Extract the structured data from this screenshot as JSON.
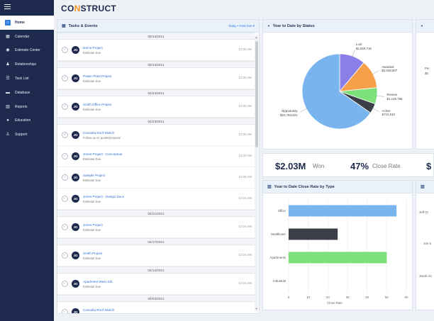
{
  "brand": {
    "logo_pre": "CO",
    "logo_hl": "N",
    "logo_post": "STRUCT"
  },
  "sidebar": {
    "items": [
      {
        "label": "Home",
        "icon": "home-icon",
        "glyph": "⌂",
        "active": true
      },
      {
        "label": "Calendar",
        "icon": "calendar-icon",
        "glyph": "▦"
      },
      {
        "label": "Estimate Center",
        "icon": "estimate-icon",
        "glyph": "◉"
      },
      {
        "label": "Relationships",
        "icon": "people-icon",
        "glyph": "♟"
      },
      {
        "label": "Task List",
        "icon": "tasklist-icon",
        "glyph": "☰"
      },
      {
        "label": "Database",
        "icon": "database-icon",
        "glyph": "▬"
      },
      {
        "label": "Reports",
        "icon": "reports-icon",
        "glyph": "▥"
      },
      {
        "label": "Education",
        "icon": "education-icon",
        "glyph": "●"
      },
      {
        "label": "Support",
        "icon": "support-icon",
        "glyph": "♙"
      }
    ]
  },
  "tasks": {
    "title": "Tasks & Events",
    "period": "Today • Past Due ▾",
    "rows": [
      {
        "type": "date",
        "label": "05/14/2021"
      },
      {
        "type": "task",
        "title": "Dal-Ie Project",
        "sub": "Estimate Due",
        "time": "12:00 AM",
        "initials": "JG"
      },
      {
        "type": "date",
        "label": "05/13/2021"
      },
      {
        "type": "task",
        "title": "Power Plant Project",
        "sub": "Estimate Due",
        "time": "12:00 AM",
        "initials": "JG"
      },
      {
        "type": "date",
        "label": "04/24/2021"
      },
      {
        "type": "task",
        "title": "Smith Office Project",
        "sub": "Estimate Due",
        "time": "12:00 AM",
        "initials": "JG"
      },
      {
        "type": "date",
        "label": "04/23/2021"
      },
      {
        "type": "task",
        "title": "Consulta Roof Sketch",
        "sub": "Follow up on quote/proposal",
        "time": "12:00 AM",
        "initials": "JG",
        "list": true
      },
      {
        "type": "task",
        "title": "Jones Project - Conceptual",
        "sub": "Estimate Due",
        "time": "12:00 AM",
        "initials": "JG"
      },
      {
        "type": "task",
        "title": "Sample Project",
        "sub": "Estimate Due",
        "time": "12:00 AM",
        "initials": "JG"
      },
      {
        "type": "task",
        "title": "Jones Project - Design Docs",
        "sub": "Estimate Due",
        "time": "12:00 AM",
        "initials": "JG"
      },
      {
        "type": "date",
        "label": "04/21/2021"
      },
      {
        "type": "task",
        "title": "Jones Project",
        "sub": "Estimate Due",
        "time": "12:00 AM",
        "initials": "JG"
      },
      {
        "type": "date",
        "label": "04/17/2021"
      },
      {
        "type": "task",
        "title": "Smith Project",
        "sub": "Estimate Due",
        "time": "12:00 AM",
        "initials": "JG"
      },
      {
        "type": "date",
        "label": "04/14/2021"
      },
      {
        "type": "task",
        "title": "Apartment West Job",
        "sub": "Estimate Due",
        "time": "12:00 AM",
        "initials": "JG"
      },
      {
        "type": "date",
        "label": "04/03/2021"
      },
      {
        "type": "task",
        "title": "Consulta Roof Sketch",
        "sub": "",
        "time": "",
        "initials": "JG"
      }
    ]
  },
  "status_chart": {
    "title": "Year to Date by Status",
    "slices": [
      {
        "name": "Lost",
        "value_label": "$1,829,716",
        "value": 1829716,
        "color": "#8a7fe8"
      },
      {
        "name": "Awarded",
        "value_label": "$2,028,007",
        "value": 2028007,
        "color": "#f7a04b"
      },
      {
        "name": "Review",
        "value_label": "$1,149,756",
        "value": 1149756,
        "color": "#7de07a"
      },
      {
        "name": "Active",
        "value_label": "$710,910",
        "value": 710910,
        "color": "#3b3f47"
      },
      {
        "name": "Opportunity",
        "value_label": "$10,764,821",
        "value": 10764821,
        "color": "#7ab4ee"
      }
    ]
  },
  "kpis": {
    "won_value": "$2.03M",
    "won_label": "Won",
    "close_value": "47%",
    "close_label": "Close Rate",
    "cut_value": "$"
  },
  "chart_data": {
    "type": "bar",
    "title": "Year to Date Close Rate by Type",
    "categories": [
      "Office",
      "Healthcare",
      "Apartments",
      "Industrial"
    ],
    "values": [
      55,
      25,
      50,
      0
    ],
    "colors": [
      "#7ab4ee",
      "#3b3f47",
      "#7de07a",
      "#cccccc"
    ],
    "xlim": [
      0,
      60
    ],
    "xticks": [
      "0",
      "10",
      "20",
      "30",
      "40",
      "50",
      "60"
    ],
    "xlabel": "Close Rate",
    "grid": true
  },
  "right_stub": {
    "top_labels": [
      "Per",
      "$5"
    ],
    "bottom_labels": [
      "Jeff Gr",
      "Joe S",
      "Jacob Sc"
    ]
  }
}
